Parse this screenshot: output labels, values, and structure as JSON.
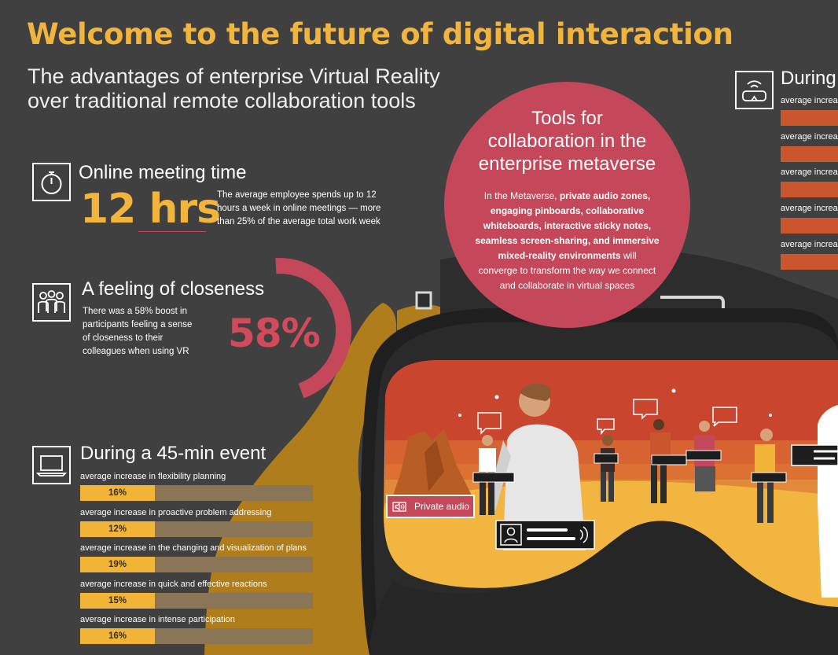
{
  "header": {
    "title": "Welcome to the future of digital interaction",
    "subtitle_line1": "The advantages of enterprise Virtual Reality",
    "subtitle_line2": "over traditional remote collaboration tools"
  },
  "online_meeting": {
    "icon": "stopwatch-icon",
    "title": "Online meeting time",
    "value": "12 hrs",
    "description_line1": "The average employee spends up to 12",
    "description_line2": "hours a week in online meetings — more",
    "description_line3": "than 25% of the average total work week"
  },
  "closeness": {
    "icon": "people-group-icon",
    "title": "A feeling of closeness",
    "value": "58%",
    "percent": 58,
    "description_line1": "There was a 58% boost in",
    "description_line2": "participants feeling a sense",
    "description_line3": "of closeness to their",
    "description_line4": "colleagues when using VR"
  },
  "event": {
    "icon": "laptop-icon",
    "title": "During a 45-min event",
    "bars": [
      {
        "label": "average increase in flexibility planning",
        "value": "16%",
        "percent": 16
      },
      {
        "label": "average increase in proactive problem addressing",
        "value": "12%",
        "percent": 12
      },
      {
        "label": "average increase in the changing and visualization of plans",
        "value": "19%",
        "percent": 19
      },
      {
        "label": "average increase in quick and effective reactions",
        "value": "15%",
        "percent": 15
      },
      {
        "label": "average increase in intense participation",
        "value": "16%",
        "percent": 16
      }
    ]
  },
  "tools": {
    "title_line1": "Tools for",
    "title_line2": "collaboration in the",
    "title_line3": "enterprise metaverse",
    "body_intro": "In the Metaverse, ",
    "body_bold1": "private audio zones,",
    "body_bold2": "engaging pinboards, collaborative",
    "body_bold3": "whiteboards, interactive sticky notes,",
    "body_bold4": "seamless screen-sharing, and immersive",
    "body_bold5": "mixed-reality environments",
    "body_rest1": " will",
    "body_rest2": "converge to transform the way we connect",
    "body_rest3": "and collaborate in virtual spaces"
  },
  "right_panel": {
    "icon": "vr-headset-icon",
    "title": "During",
    "labels": [
      "average increa",
      "average increa",
      "average increa",
      "average increa",
      "average increa"
    ]
  },
  "scene": {
    "private_audio_label": "Private audio",
    "speaker_icon": "speaker-icon"
  },
  "colors": {
    "background": "#404040",
    "yellow": "#f1b43d",
    "red": "#c4475a",
    "orange_bar": "#c9562c",
    "bar_track": "#8a7657"
  }
}
